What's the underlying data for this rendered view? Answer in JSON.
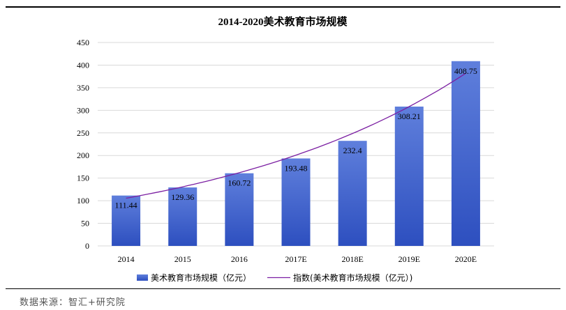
{
  "chart_data": {
    "type": "bar",
    "title": "2014-2020美术教育市场规模",
    "categories": [
      "2014",
      "2015",
      "2016",
      "2017E",
      "2018E",
      "2019E",
      "2020E"
    ],
    "series": [
      {
        "name": "美术教育市场规模（亿元）",
        "type": "bar",
        "values": [
          111.44,
          129.36,
          160.72,
          193.48,
          232.4,
          308.21,
          408.75
        ],
        "value_labels": [
          "111.44",
          "129.36",
          "160.72",
          "193.48",
          "232.4",
          "308.21",
          "408.75"
        ]
      },
      {
        "name": "指数(美术教育市场规模（亿元）)",
        "type": "line",
        "trendline": "exponential"
      }
    ],
    "yticks": [
      "0",
      "50",
      "100",
      "150",
      "200",
      "250",
      "300",
      "350",
      "400",
      "450"
    ],
    "ylim": [
      0,
      450
    ],
    "grid": true,
    "legend": "bottom"
  },
  "source": "数据来源：智汇+研究院",
  "colors": {
    "bar_top": "#5f7fdc",
    "bar_bottom": "#2d4fbf",
    "trend": "#7b1fa2",
    "grid": "#d9d9d9"
  }
}
